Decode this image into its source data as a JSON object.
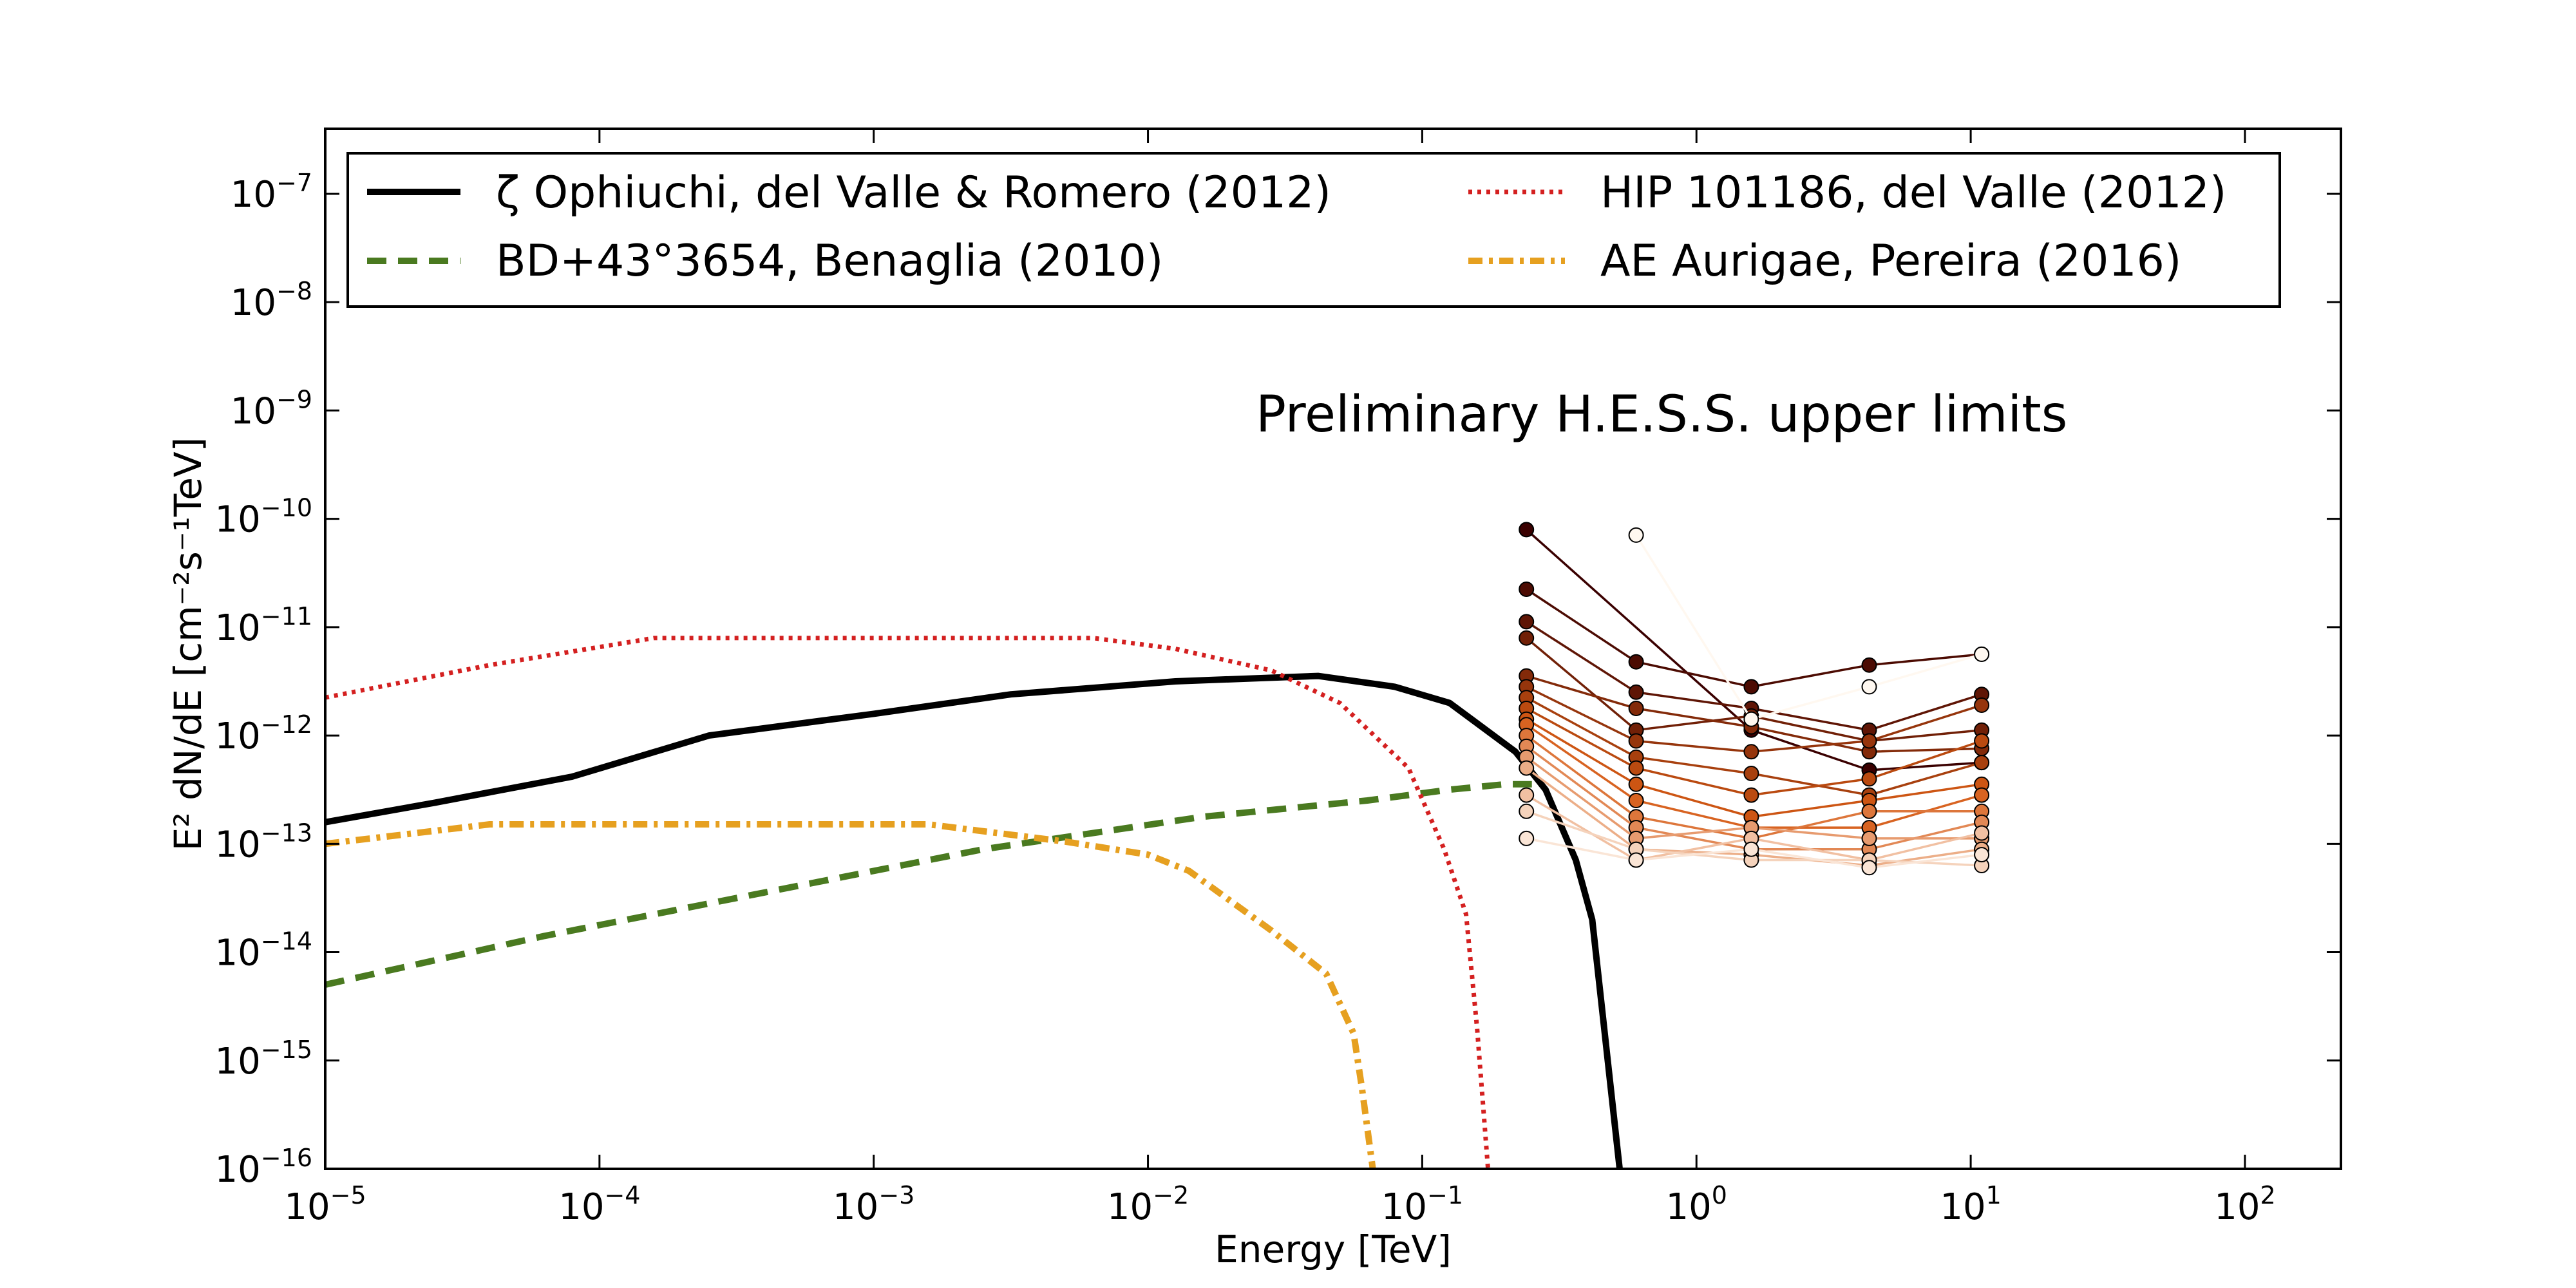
{
  "chart_data": {
    "type": "line",
    "title": "",
    "annotation": "Preliminary H.E.S.S. upper limits",
    "xlabel": "Energy [TeV]",
    "ylabel": "E² dN/dE [cm⁻²s⁻¹TeV]",
    "xscale": "log",
    "yscale": "log",
    "xlim_log10": [
      -5,
      2.35
    ],
    "ylim_log10": [
      -16,
      -6.4
    ],
    "x_ticks_log10": [
      -5,
      -4,
      -3,
      -2,
      -1,
      0,
      1,
      2
    ],
    "y_ticks_log10": [
      -16,
      -15,
      -14,
      -13,
      -12,
      -11,
      -10,
      -9,
      -8,
      -7
    ],
    "legend_position": "top, two columns",
    "series": [
      {
        "name": "ζ Ophiuchi, del Valle & Romero (2012)",
        "color": "#000000",
        "style": "solid",
        "points_log10": [
          [
            -5.0,
            -12.8
          ],
          [
            -4.6,
            -12.62
          ],
          [
            -4.1,
            -12.38
          ],
          [
            -3.6,
            -12.0
          ],
          [
            -3.0,
            -11.8
          ],
          [
            -2.5,
            -11.62
          ],
          [
            -1.9,
            -11.5
          ],
          [
            -1.38,
            -11.45
          ],
          [
            -1.1,
            -11.55
          ],
          [
            -0.9,
            -11.7
          ],
          [
            -0.66,
            -12.15
          ],
          [
            -0.55,
            -12.5
          ],
          [
            -0.44,
            -13.15
          ],
          [
            -0.38,
            -13.7
          ],
          [
            -0.33,
            -14.85
          ],
          [
            -0.28,
            -16.0
          ]
        ]
      },
      {
        "name": "BD+43°3654, Benaglia (2010)",
        "color": "#4a7a20",
        "style": "dashed",
        "points_log10": [
          [
            -5.0,
            -14.3
          ],
          [
            -4.2,
            -13.85
          ],
          [
            -3.4,
            -13.45
          ],
          [
            -2.6,
            -13.05
          ],
          [
            -1.8,
            -12.75
          ],
          [
            -1.2,
            -12.6
          ],
          [
            -0.9,
            -12.5
          ],
          [
            -0.7,
            -12.45
          ],
          [
            -0.6,
            -12.45
          ]
        ]
      },
      {
        "name": "HIP 101186, del Valle (2012)",
        "color": "#d42020",
        "style": "dotted",
        "points_log10": [
          [
            -5.0,
            -11.65
          ],
          [
            -4.4,
            -11.35
          ],
          [
            -3.8,
            -11.1
          ],
          [
            -3.0,
            -11.1
          ],
          [
            -2.2,
            -11.1
          ],
          [
            -1.9,
            -11.2
          ],
          [
            -1.55,
            -11.4
          ],
          [
            -1.3,
            -11.7
          ],
          [
            -1.05,
            -12.3
          ],
          [
            -0.92,
            -13.05
          ],
          [
            -0.84,
            -13.65
          ],
          [
            -0.8,
            -14.7
          ],
          [
            -0.76,
            -16.0
          ]
        ]
      },
      {
        "name": "AE Aurigae, Pereira (2016)",
        "color": "#e6a020",
        "style": "dashdot",
        "points_log10": [
          [
            -5.0,
            -13.0
          ],
          [
            -4.4,
            -12.82
          ],
          [
            -3.6,
            -12.82
          ],
          [
            -2.8,
            -12.82
          ],
          [
            -2.3,
            -12.98
          ],
          [
            -2.0,
            -13.1
          ],
          [
            -1.85,
            -13.25
          ],
          [
            -1.55,
            -13.8
          ],
          [
            -1.35,
            -14.2
          ],
          [
            -1.25,
            -14.75
          ],
          [
            -1.22,
            -15.25
          ],
          [
            -1.18,
            -16.0
          ]
        ]
      }
    ],
    "upper_limits": {
      "energies_log10": [
        -0.62,
        -0.22,
        0.2,
        0.63,
        1.04
      ],
      "markers": "circle",
      "color_range": [
        "#3a0000",
        "#fff8f0"
      ],
      "profiles_log10": [
        [
          -10.1,
          null,
          -11.95,
          -12.32,
          -12.25
        ],
        [
          -10.65,
          -11.32,
          -11.55,
          -11.35,
          -11.25
        ],
        [
          -10.95,
          -11.6,
          -11.75,
          -11.95,
          -11.62
        ],
        [
          -11.1,
          -11.95,
          -11.82,
          -12.05,
          -11.95
        ],
        [
          -11.45,
          -11.75,
          -11.92,
          -12.15,
          -12.12
        ],
        [
          -11.55,
          -12.05,
          -12.15,
          -12.05,
          -11.72
        ],
        [
          -11.65,
          -12.2,
          -12.35,
          -12.55,
          -12.25
        ],
        [
          -11.75,
          -12.3,
          -12.55,
          -12.4,
          -12.05
        ],
        [
          -11.85,
          -12.45,
          -12.75,
          -12.6,
          -12.45
        ],
        [
          -11.9,
          -12.6,
          -12.85,
          -12.85,
          -12.55
        ],
        [
          -12.0,
          -12.75,
          -12.95,
          -12.7,
          -12.7
        ],
        [
          -12.1,
          -12.85,
          -13.05,
          -13.05,
          -12.8
        ],
        [
          -12.2,
          -12.95,
          -12.85,
          -12.95,
          -12.95
        ],
        [
          -12.3,
          -13.05,
          -13.1,
          -13.2,
          -13.05
        ],
        [
          -12.55,
          -13.15,
          -12.95,
          -13.15,
          -12.9
        ],
        [
          -12.7,
          -13.05,
          -13.15,
          -13.15,
          -13.2
        ],
        [
          -12.95,
          -13.15,
          -13.05,
          -13.22,
          -13.1
        ],
        [
          null,
          -10.15,
          -11.85,
          -11.55,
          -11.25
        ]
      ]
    }
  }
}
